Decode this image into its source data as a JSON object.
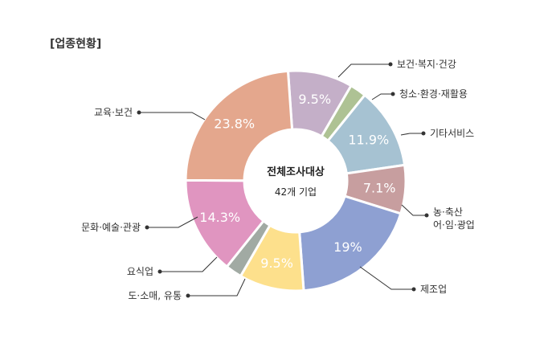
{
  "title": "[업종현황]",
  "chart_data": {
    "type": "pie",
    "donut": true,
    "center_lines": [
      "전체조사대상",
      "42개 기업"
    ],
    "slices": [
      {
        "label": "보건·복지·건강",
        "value": 9.5,
        "value_label": "9.5%",
        "color": "#c4afc8"
      },
      {
        "label": "청소·환경·재활용",
        "value": 2.4,
        "value_label": "",
        "color": "#aec294"
      },
      {
        "label": "기타서비스",
        "value": 11.9,
        "value_label": "11.9%",
        "color": "#a6c2d2"
      },
      {
        "label": "농·축산|어·임·광업",
        "value": 7.1,
        "value_label": "7.1%",
        "color": "#c79e9f"
      },
      {
        "label": "제조업",
        "value": 19,
        "value_label": "19%",
        "color": "#8ea0d2"
      },
      {
        "label": "도·소매, 유통",
        "value": 9.5,
        "value_label": "9.5%",
        "color": "#fde08c"
      },
      {
        "label": "요식업",
        "value": 2.4,
        "value_label": "",
        "color": "#a1aaa3"
      },
      {
        "label": "문화·예술·관광",
        "value": 14.3,
        "value_label": "14.3%",
        "color": "#e095c0"
      },
      {
        "label": "교육·보건",
        "value": 23.8,
        "value_label": "23.8%",
        "color": "#e4a78d"
      }
    ]
  }
}
